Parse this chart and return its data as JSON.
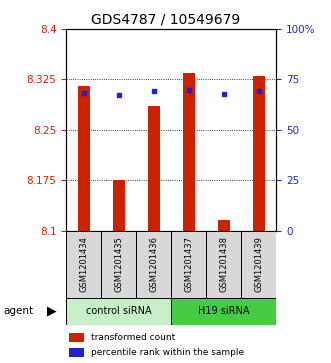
{
  "title": "GDS4787 / 10549679",
  "samples": [
    "GSM1201434",
    "GSM1201435",
    "GSM1201436",
    "GSM1201437",
    "GSM1201438",
    "GSM1201439"
  ],
  "bar_values": [
    8.315,
    8.175,
    8.285,
    8.335,
    8.115,
    8.33
  ],
  "percentile_values": [
    8.305,
    8.302,
    8.307,
    8.309,
    8.303,
    8.308
  ],
  "ymin": 8.1,
  "ymax": 8.4,
  "yticks": [
    8.1,
    8.175,
    8.25,
    8.325,
    8.4
  ],
  "ytick_labels": [
    "8.1",
    "8.175",
    "8.25",
    "8.325",
    "8.4"
  ],
  "right_yticks": [
    0,
    25,
    50,
    75,
    100
  ],
  "right_ytick_labels": [
    "0",
    "25",
    "50",
    "75",
    "100%"
  ],
  "bar_color": "#cc2200",
  "percentile_color": "#2222cc",
  "sample_bg_color": "#d8d8d8",
  "control_color": "#c8f0c8",
  "h19_color": "#44cc44",
  "agent_label": "agent",
  "control_label": "control siRNA",
  "h19_label": "H19 siRNA",
  "legend_bar_label": "transformed count",
  "legend_pct_label": "percentile rank within the sample",
  "title_fontsize": 10,
  "tick_fontsize": 7.5,
  "bar_width": 0.35
}
